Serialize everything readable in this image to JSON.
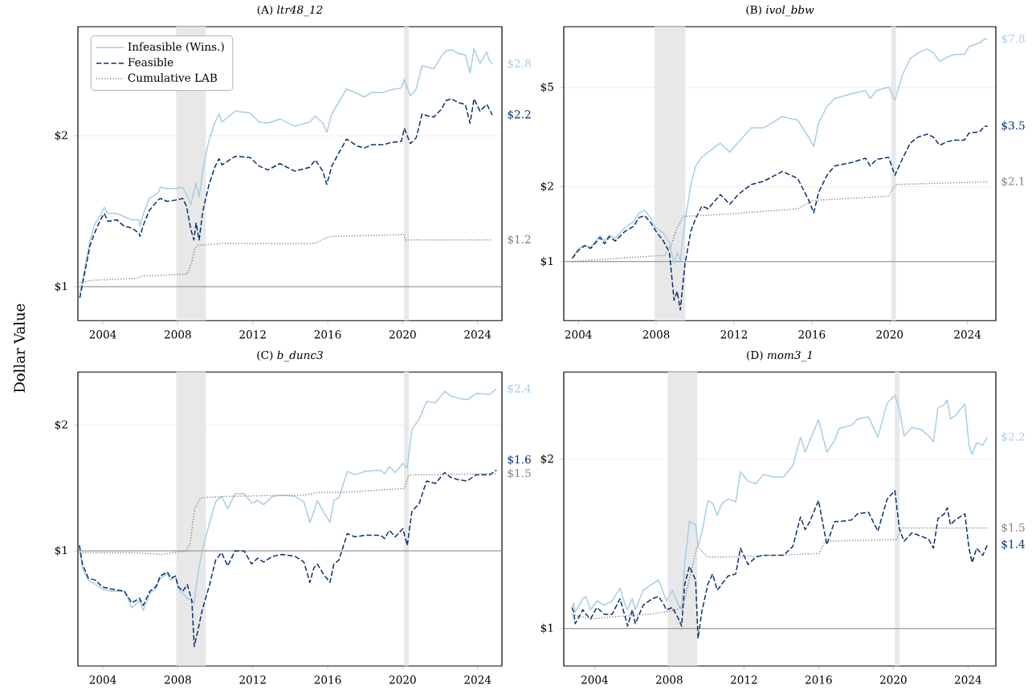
{
  "chart_data": [
    {
      "type": "line",
      "title": "(A) *ltr48_12*",
      "ylabel": "Dollar Value",
      "log": "y",
      "grid": "y",
      "legend": "top left",
      "xlim": [
        2002.67,
        2025.3
      ],
      "xticks": [
        2004,
        2008,
        2012,
        2016,
        2020,
        2024
      ],
      "ylim": [
        0.856,
        3.3
      ],
      "yticks": [
        {
          "value": 1,
          "label": "$1"
        },
        {
          "value": 2,
          "label": "$2"
        }
      ],
      "ref_lines": [
        {
          "axis": "y",
          "value": 1,
          "color": "#888888"
        }
      ],
      "bands": [
        {
          "axis": "x",
          "from": 2007.92,
          "to": 2009.5,
          "color": "#e8e8e8"
        },
        {
          "axis": "x",
          "from": 2020.08,
          "to": 2020.33,
          "color": "#e8e8e8"
        }
      ],
      "x": [
        2002.77,
        2003.0,
        2003.32,
        2003.56,
        2003.87,
        2004.08,
        2004.27,
        2004.74,
        2005.14,
        2005.53,
        2005.93,
        2005.98,
        2006.17,
        2006.48,
        2006.96,
        2007.07,
        2007.43,
        2007.91,
        2008.26,
        2008.46,
        2008.7,
        2008.86,
        2008.98,
        2009.14,
        2009.33,
        2009.65,
        2009.97,
        2010.2,
        2010.36,
        2011.07,
        2011.86,
        2012.34,
        2012.81,
        2013.45,
        2014.24,
        2015.03,
        2015.34,
        2015.74,
        2015.95,
        2016.22,
        2016.53,
        2017.01,
        2017.56,
        2017.96,
        2018.35,
        2018.98,
        2019.38,
        2019.93,
        2020.09,
        2020.41,
        2020.72,
        2021.04,
        2021.36,
        2021.67,
        2022.07,
        2022.31,
        2022.62,
        2022.94,
        2023.34,
        2023.6,
        2023.81,
        2024.13,
        2024.49,
        2024.6,
        2024.79
      ],
      "series": [
        {
          "name": "Infeasible (Wins.)",
          "color": "#a6cee3",
          "type": "line",
          "line_style": "solid",
          "values": [
            0.97,
            1.07,
            1.24,
            1.33,
            1.39,
            1.44,
            1.4,
            1.4,
            1.38,
            1.36,
            1.36,
            1.32,
            1.4,
            1.5,
            1.54,
            1.58,
            1.57,
            1.57,
            1.58,
            1.53,
            1.46,
            1.55,
            1.61,
            1.51,
            1.7,
            1.95,
            2.12,
            2.21,
            2.13,
            2.24,
            2.22,
            2.13,
            2.12,
            2.16,
            2.09,
            2.13,
            2.19,
            2.12,
            2.03,
            2.21,
            2.31,
            2.48,
            2.43,
            2.39,
            2.44,
            2.44,
            2.47,
            2.49,
            2.59,
            2.4,
            2.48,
            2.76,
            2.74,
            2.72,
            2.88,
            2.95,
            2.97,
            2.92,
            2.9,
            2.67,
            2.98,
            2.79,
            2.94,
            2.84,
            2.78
          ],
          "value_labels": [
            null,
            null,
            null,
            null,
            null,
            null,
            null,
            null,
            null,
            null,
            null,
            null,
            null,
            null,
            null,
            null,
            null,
            null,
            null,
            null,
            null,
            null,
            null,
            null,
            null,
            null,
            null,
            null,
            null,
            null,
            null,
            null,
            null,
            null,
            null,
            null,
            null,
            null,
            null,
            null,
            null,
            null,
            null,
            null,
            null,
            null,
            null,
            null,
            null,
            null,
            null,
            null,
            null,
            null,
            null,
            null,
            null,
            null,
            null,
            null,
            null,
            null,
            null,
            null,
            "$2.8"
          ]
        },
        {
          "name": "Feasible",
          "color": "#08306b",
          "type": "line",
          "line_style": "dashed",
          "values": [
            0.95,
            1.05,
            1.21,
            1.28,
            1.36,
            1.4,
            1.35,
            1.36,
            1.32,
            1.31,
            1.28,
            1.26,
            1.33,
            1.42,
            1.49,
            1.5,
            1.48,
            1.49,
            1.5,
            1.45,
            1.3,
            1.24,
            1.34,
            1.24,
            1.41,
            1.59,
            1.73,
            1.8,
            1.75,
            1.82,
            1.81,
            1.74,
            1.71,
            1.76,
            1.7,
            1.73,
            1.79,
            1.7,
            1.6,
            1.74,
            1.83,
            1.97,
            1.91,
            1.89,
            1.92,
            1.92,
            1.94,
            1.95,
            2.07,
            1.93,
            1.98,
            2.21,
            2.19,
            2.18,
            2.26,
            2.35,
            2.37,
            2.33,
            2.31,
            2.12,
            2.37,
            2.24,
            2.31,
            2.27,
            2.2
          ],
          "value_labels": [
            null,
            null,
            null,
            null,
            null,
            null,
            null,
            null,
            null,
            null,
            null,
            null,
            null,
            null,
            null,
            null,
            null,
            null,
            null,
            null,
            null,
            null,
            null,
            null,
            null,
            null,
            null,
            null,
            null,
            null,
            null,
            null,
            null,
            null,
            null,
            null,
            null,
            null,
            null,
            null,
            null,
            null,
            null,
            null,
            null,
            null,
            null,
            null,
            null,
            null,
            null,
            null,
            null,
            null,
            null,
            null,
            null,
            null,
            null,
            null,
            null,
            null,
            null,
            null,
            "$2.2"
          ]
        },
        {
          "name": "Cumulative LAB",
          "color": "#808080",
          "type": "line",
          "line_style": "dotted",
          "x": [
            2002.77,
            2003.5,
            2005.9,
            2006.0,
            2008.5,
            2008.75,
            2008.9,
            2009.1,
            2010.5,
            2015.3,
            2015.9,
            2016.2,
            2020.05,
            2020.15,
            2024.79
          ],
          "values": [
            1.02,
            1.03,
            1.04,
            1.05,
            1.06,
            1.12,
            1.19,
            1.21,
            1.22,
            1.22,
            1.25,
            1.26,
            1.27,
            1.24,
            1.24
          ],
          "value_labels": [
            null,
            null,
            null,
            null,
            null,
            null,
            null,
            null,
            null,
            null,
            null,
            null,
            null,
            null,
            "$1.2"
          ]
        }
      ]
    },
    {
      "type": "line",
      "title": "(B) *ivol_bbw*",
      "log": "y",
      "grid": "y",
      "xlim": [
        2003.25,
        2025.46
      ],
      "xticks": [
        2004,
        2008,
        2012,
        2016,
        2020,
        2024
      ],
      "ylim": [
        0.58,
        8.76
      ],
      "yticks": [
        {
          "value": 1,
          "label": "$1"
        },
        {
          "value": 2,
          "label": "$2"
        },
        {
          "value": 5,
          "label": "$5"
        }
      ],
      "ref_lines": [
        {
          "axis": "y",
          "value": 1,
          "color": "#888888"
        }
      ],
      "bands": [
        {
          "axis": "x",
          "from": 2007.92,
          "to": 2009.5,
          "color": "#e8e8e8"
        },
        {
          "axis": "x",
          "from": 2020.08,
          "to": 2020.33,
          "color": "#e8e8e8"
        }
      ],
      "x": [
        2003.68,
        2004.0,
        2004.32,
        2004.63,
        2005.11,
        2005.35,
        2005.59,
        2005.9,
        2006.38,
        2006.86,
        2007.1,
        2007.41,
        2007.73,
        2007.97,
        2008.37,
        2008.68,
        2008.92,
        2009.08,
        2009.24,
        2009.48,
        2009.79,
        2010.03,
        2010.35,
        2010.67,
        2011.3,
        2011.78,
        2012.25,
        2012.89,
        2013.52,
        2014.48,
        2015.27,
        2015.83,
        2016.1,
        2016.35,
        2016.78,
        2017.17,
        2017.97,
        2018.76,
        2019.0,
        2019.32,
        2019.95,
        2020.27,
        2020.67,
        2021.06,
        2021.46,
        2021.94,
        2022.25,
        2022.57,
        2022.97,
        2023.37,
        2023.84,
        2024.08,
        2024.63,
        2024.87,
        2025.03
      ],
      "series": [
        {
          "color": "#a6cee3",
          "type": "line",
          "line_style": "solid",
          "values": [
            1.03,
            1.13,
            1.16,
            1.14,
            1.27,
            1.21,
            1.28,
            1.24,
            1.37,
            1.45,
            1.56,
            1.61,
            1.49,
            1.37,
            1.3,
            1.19,
            0.98,
            1.09,
            1.01,
            1.45,
            2.05,
            2.42,
            2.63,
            2.75,
            2.99,
            2.75,
            3.03,
            3.44,
            3.44,
            3.82,
            3.7,
            3.16,
            2.9,
            3.6,
            4.19,
            4.51,
            4.7,
            4.86,
            4.51,
            4.86,
            5.01,
            4.44,
            5.65,
            6.53,
            6.88,
            7.14,
            6.88,
            6.36,
            6.63,
            6.78,
            6.78,
            7.29,
            7.55,
            7.82,
            7.8
          ],
          "value_labels": [
            null,
            null,
            null,
            null,
            null,
            null,
            null,
            null,
            null,
            null,
            null,
            null,
            null,
            null,
            null,
            null,
            null,
            null,
            null,
            null,
            null,
            null,
            null,
            null,
            null,
            null,
            null,
            null,
            null,
            null,
            null,
            null,
            null,
            null,
            null,
            null,
            null,
            null,
            null,
            null,
            null,
            null,
            null,
            null,
            null,
            null,
            null,
            null,
            null,
            null,
            null,
            null,
            null,
            null,
            "$7.8"
          ]
        },
        {
          "color": "#08306b",
          "type": "line",
          "line_style": "dashed",
          "values": [
            1.03,
            1.11,
            1.16,
            1.13,
            1.25,
            1.18,
            1.26,
            1.21,
            1.32,
            1.39,
            1.5,
            1.53,
            1.43,
            1.33,
            1.21,
            1.09,
            0.7,
            0.76,
            0.64,
            0.98,
            1.33,
            1.49,
            1.67,
            1.63,
            1.86,
            1.7,
            1.87,
            2.04,
            2.1,
            2.3,
            2.16,
            1.77,
            1.57,
            1.9,
            2.22,
            2.42,
            2.49,
            2.6,
            2.42,
            2.57,
            2.62,
            2.22,
            2.6,
            2.99,
            3.16,
            3.25,
            3.16,
            2.93,
            3.03,
            3.07,
            3.07,
            3.28,
            3.32,
            3.49,
            3.5
          ],
          "value_labels": [
            null,
            null,
            null,
            null,
            null,
            null,
            null,
            null,
            null,
            null,
            null,
            null,
            null,
            null,
            null,
            null,
            null,
            null,
            null,
            null,
            null,
            null,
            null,
            null,
            null,
            null,
            null,
            null,
            null,
            null,
            null,
            null,
            null,
            null,
            null,
            null,
            null,
            null,
            null,
            null,
            null,
            null,
            null,
            null,
            null,
            null,
            null,
            null,
            null,
            null,
            null,
            null,
            null,
            null,
            "$3.5"
          ]
        },
        {
          "color": "#808080",
          "type": "line",
          "line_style": "dotted",
          "x": [
            2003.68,
            2005.9,
            2008.44,
            2008.76,
            2009.08,
            2009.4,
            2011.62,
            2015.27,
            2016.06,
            2019.95,
            2020.19,
            2020.35,
            2025.03
          ],
          "values": [
            1.0,
            1.03,
            1.06,
            1.16,
            1.37,
            1.52,
            1.55,
            1.63,
            1.76,
            1.83,
            1.98,
            2.04,
            2.09
          ],
          "value_labels": [
            null,
            null,
            null,
            null,
            null,
            null,
            null,
            null,
            null,
            null,
            null,
            null,
            "$2.1"
          ]
        }
      ]
    },
    {
      "type": "line",
      "title": "(C) *b_dunc3*",
      "log": "y",
      "grid": "y",
      "xlim": [
        2002.67,
        2025.3
      ],
      "xticks": [
        2004,
        2008,
        2012,
        2016,
        2020,
        2024
      ],
      "ylim": [
        0.53,
        2.68
      ],
      "yticks": [
        {
          "value": 1,
          "label": "$1"
        },
        {
          "value": 2,
          "label": "$2"
        }
      ],
      "ref_lines": [
        {
          "axis": "y",
          "value": 1,
          "color": "#888888"
        }
      ],
      "bands": [
        {
          "axis": "x",
          "from": 2007.92,
          "to": 2009.5,
          "color": "#e8e8e8"
        },
        {
          "axis": "x",
          "from": 2020.08,
          "to": 2020.33,
          "color": "#e8e8e8"
        }
      ],
      "x": [
        2002.75,
        2002.91,
        2003.23,
        2003.63,
        2003.95,
        2004.43,
        2005.15,
        2005.55,
        2005.95,
        2006.16,
        2006.51,
        2006.83,
        2007.07,
        2007.44,
        2007.63,
        2007.87,
        2008.03,
        2008.27,
        2008.51,
        2008.75,
        2008.88,
        2009.06,
        2009.3,
        2009.7,
        2010.02,
        2010.34,
        2010.66,
        2011.06,
        2011.54,
        2011.94,
        2012.26,
        2012.58,
        2013.06,
        2013.54,
        2014.26,
        2014.73,
        2015.05,
        2015.26,
        2015.45,
        2015.77,
        2016.12,
        2016.33,
        2016.6,
        2017.05,
        2017.45,
        2018.01,
        2018.81,
        2019.05,
        2019.29,
        2019.61,
        2020.01,
        2020.25,
        2020.49,
        2020.89,
        2021.28,
        2021.76,
        2022.24,
        2022.56,
        2022.96,
        2023.44,
        2023.92,
        2024.64,
        2025.01
      ],
      "series": [
        {
          "color": "#a6cee3",
          "type": "line",
          "line_style": "solid",
          "values": [
            1.03,
            0.91,
            0.85,
            0.83,
            0.81,
            0.8,
            0.8,
            0.73,
            0.76,
            0.72,
            0.79,
            0.81,
            0.86,
            0.88,
            0.85,
            0.87,
            0.81,
            0.79,
            0.77,
            0.76,
            0.75,
            0.87,
            1.0,
            1.17,
            1.31,
            1.35,
            1.26,
            1.37,
            1.37,
            1.3,
            1.32,
            1.29,
            1.35,
            1.36,
            1.35,
            1.31,
            1.17,
            1.24,
            1.32,
            1.24,
            1.17,
            1.32,
            1.34,
            1.55,
            1.52,
            1.55,
            1.56,
            1.53,
            1.59,
            1.54,
            1.62,
            1.58,
            1.95,
            2.07,
            2.28,
            2.26,
            2.41,
            2.35,
            2.32,
            2.3,
            2.38,
            2.37,
            2.44
          ],
          "value_labels": [
            null,
            null,
            null,
            null,
            null,
            null,
            null,
            null,
            null,
            null,
            null,
            null,
            null,
            null,
            null,
            null,
            null,
            null,
            null,
            null,
            null,
            null,
            null,
            null,
            null,
            null,
            null,
            null,
            null,
            null,
            null,
            null,
            null,
            null,
            null,
            null,
            null,
            null,
            null,
            null,
            null,
            null,
            null,
            null,
            null,
            null,
            null,
            null,
            null,
            null,
            null,
            null,
            null,
            null,
            null,
            null,
            null,
            null,
            null,
            null,
            null,
            null,
            "$2.4"
          ]
        },
        {
          "color": "#08306b",
          "type": "line",
          "line_style": "dashed",
          "values": [
            1.03,
            0.93,
            0.86,
            0.85,
            0.82,
            0.81,
            0.8,
            0.75,
            0.77,
            0.74,
            0.8,
            0.82,
            0.87,
            0.89,
            0.86,
            0.87,
            0.82,
            0.8,
            0.83,
            0.76,
            0.59,
            0.64,
            0.72,
            0.83,
            0.95,
            0.99,
            0.92,
            1.0,
            1.0,
            0.93,
            0.96,
            0.94,
            0.97,
            0.98,
            0.97,
            0.94,
            0.84,
            0.91,
            0.93,
            0.88,
            0.84,
            0.93,
            0.95,
            1.1,
            1.08,
            1.09,
            1.09,
            1.07,
            1.12,
            1.08,
            1.13,
            1.03,
            1.24,
            1.3,
            1.47,
            1.45,
            1.54,
            1.5,
            1.48,
            1.47,
            1.52,
            1.52,
            1.56
          ],
          "value_labels": [
            null,
            null,
            null,
            null,
            null,
            null,
            null,
            null,
            null,
            null,
            null,
            null,
            null,
            null,
            null,
            null,
            null,
            null,
            null,
            null,
            null,
            null,
            null,
            null,
            null,
            null,
            null,
            null,
            null,
            null,
            null,
            null,
            null,
            null,
            null,
            null,
            null,
            null,
            null,
            null,
            null,
            null,
            null,
            null,
            null,
            null,
            null,
            null,
            null,
            null,
            null,
            null,
            null,
            null,
            null,
            null,
            null,
            null,
            null,
            null,
            null,
            null,
            "$1.6"
          ]
        },
        {
          "color": "#808080",
          "type": "line",
          "line_style": "dotted",
          "x": [
            2002.75,
            2005.55,
            2007.15,
            2008.43,
            2008.66,
            2008.9,
            2009.22,
            2010.66,
            2014.81,
            2015.53,
            2015.93,
            2016.73,
            2020.09,
            2020.33,
            2025.01
          ],
          "values": [
            0.99,
            0.99,
            0.98,
            1.0,
            1.04,
            1.26,
            1.34,
            1.35,
            1.36,
            1.38,
            1.38,
            1.38,
            1.41,
            1.52,
            1.53
          ],
          "value_labels": [
            null,
            null,
            null,
            null,
            null,
            null,
            null,
            null,
            null,
            null,
            null,
            null,
            null,
            null,
            "$1.5"
          ]
        }
      ]
    },
    {
      "type": "line",
      "title": "(D) *mom3_1*",
      "log": "y",
      "grid": "y",
      "xlim": [
        2002.35,
        2025.49
      ],
      "xticks": [
        2004,
        2008,
        2012,
        2016,
        2020,
        2024
      ],
      "ylim": [
        0.858,
        2.86
      ],
      "yticks": [
        {
          "value": 1,
          "label": "$1"
        },
        {
          "value": 2,
          "label": "$2"
        }
      ],
      "ref_lines": [
        {
          "axis": "y",
          "value": 1,
          "color": "#888888"
        }
      ],
      "bands": [
        {
          "axis": "x",
          "from": 2007.92,
          "to": 2009.5,
          "color": "#e8e8e8"
        },
        {
          "axis": "x",
          "from": 2020.08,
          "to": 2020.33,
          "color": "#e8e8e8"
        }
      ],
      "x": [
        2002.79,
        2002.88,
        2002.96,
        2003.37,
        2003.54,
        2003.78,
        2004.12,
        2004.53,
        2004.94,
        2005.36,
        2005.6,
        2005.77,
        2006.02,
        2006.18,
        2006.6,
        2007.09,
        2007.42,
        2007.67,
        2007.84,
        2008.17,
        2008.5,
        2008.66,
        2008.83,
        2009.08,
        2009.41,
        2009.54,
        2009.74,
        2010.07,
        2010.32,
        2010.57,
        2010.82,
        2011.15,
        2011.56,
        2011.81,
        2012.22,
        2012.64,
        2013.05,
        2013.55,
        2014.12,
        2014.62,
        2015.03,
        2015.28,
        2015.53,
        2015.99,
        2016.44,
        2016.85,
        2017.1,
        2017.76,
        2018.09,
        2018.67,
        2019.17,
        2019.67,
        2020.08,
        2020.33,
        2020.58,
        2020.99,
        2021.49,
        2021.9,
        2022.15,
        2022.39,
        2022.73,
        2022.89,
        2023.06,
        2023.31,
        2023.83,
        2024.05,
        2024.22,
        2024.46,
        2024.79,
        2025.04
      ],
      "series": [
        {
          "color": "#a6cee3",
          "type": "line",
          "line_style": "solid",
          "values": [
            1.09,
            1.11,
            1.07,
            1.13,
            1.14,
            1.08,
            1.12,
            1.1,
            1.12,
            1.18,
            1.11,
            1.08,
            1.13,
            1.08,
            1.17,
            1.2,
            1.22,
            1.16,
            1.12,
            1.17,
            1.1,
            1.08,
            1.31,
            1.55,
            1.53,
            1.4,
            1.48,
            1.69,
            1.67,
            1.59,
            1.67,
            1.7,
            1.68,
            1.9,
            1.83,
            1.81,
            1.88,
            1.86,
            1.86,
            1.95,
            2.19,
            2.06,
            2.16,
            2.35,
            2.06,
            2.16,
            2.27,
            2.3,
            2.36,
            2.38,
            2.19,
            2.52,
            2.6,
            2.45,
            2.2,
            2.28,
            2.26,
            2.2,
            2.15,
            2.47,
            2.5,
            2.55,
            2.36,
            2.39,
            2.51,
            2.12,
            2.04,
            2.14,
            2.12,
            2.19
          ],
          "value_labels": [
            null,
            null,
            null,
            null,
            null,
            null,
            null,
            null,
            null,
            null,
            null,
            null,
            null,
            null,
            null,
            null,
            null,
            null,
            null,
            null,
            null,
            null,
            null,
            null,
            null,
            null,
            null,
            null,
            null,
            null,
            null,
            null,
            null,
            null,
            null,
            null,
            null,
            null,
            null,
            null,
            null,
            null,
            null,
            null,
            null,
            null,
            null,
            null,
            null,
            null,
            null,
            null,
            null,
            null,
            null,
            null,
            null,
            null,
            null,
            null,
            null,
            null,
            null,
            null,
            null,
            null,
            null,
            null,
            null,
            "$2.2"
          ]
        },
        {
          "color": "#08306b",
          "type": "line",
          "line_style": "dashed",
          "values": [
            1.09,
            1.07,
            1.02,
            1.08,
            1.06,
            1.04,
            1.09,
            1.06,
            1.06,
            1.13,
            1.06,
            1.01,
            1.08,
            1.02,
            1.1,
            1.13,
            1.14,
            1.11,
            1.08,
            1.09,
            1.04,
            1.01,
            1.2,
            1.29,
            1.22,
            0.96,
            1.07,
            1.2,
            1.25,
            1.17,
            1.2,
            1.24,
            1.25,
            1.39,
            1.3,
            1.34,
            1.35,
            1.35,
            1.35,
            1.4,
            1.58,
            1.5,
            1.55,
            1.69,
            1.41,
            1.55,
            1.55,
            1.56,
            1.6,
            1.61,
            1.49,
            1.7,
            1.76,
            1.5,
            1.43,
            1.48,
            1.46,
            1.44,
            1.39,
            1.57,
            1.6,
            1.64,
            1.53,
            1.56,
            1.6,
            1.39,
            1.31,
            1.39,
            1.35,
            1.41
          ],
          "value_labels": [
            null,
            null,
            null,
            null,
            null,
            null,
            null,
            null,
            null,
            null,
            null,
            null,
            null,
            null,
            null,
            null,
            null,
            null,
            null,
            null,
            null,
            null,
            null,
            null,
            null,
            null,
            null,
            null,
            null,
            null,
            null,
            null,
            null,
            null,
            null,
            null,
            null,
            null,
            null,
            null,
            null,
            null,
            null,
            null,
            null,
            null,
            null,
            null,
            null,
            null,
            null,
            null,
            null,
            null,
            null,
            null,
            null,
            null,
            null,
            null,
            null,
            null,
            null,
            null,
            null,
            null,
            null,
            null,
            null,
            "$1.4"
          ]
        },
        {
          "color": "#808080",
          "type": "line",
          "line_style": "dotted",
          "x": [
            2002.79,
            2003.78,
            2005.11,
            2006.93,
            2008.42,
            2008.75,
            2009.49,
            2010.07,
            2011.06,
            2016.03,
            2016.36,
            2020.16,
            2020.49,
            2025.04
          ],
          "values": [
            1.06,
            1.04,
            1.05,
            1.06,
            1.08,
            1.1,
            1.4,
            1.34,
            1.34,
            1.36,
            1.43,
            1.44,
            1.51,
            1.51
          ],
          "value_labels": [
            null,
            null,
            null,
            null,
            null,
            null,
            null,
            null,
            null,
            null,
            null,
            null,
            null,
            "$1.5"
          ]
        }
      ]
    }
  ]
}
